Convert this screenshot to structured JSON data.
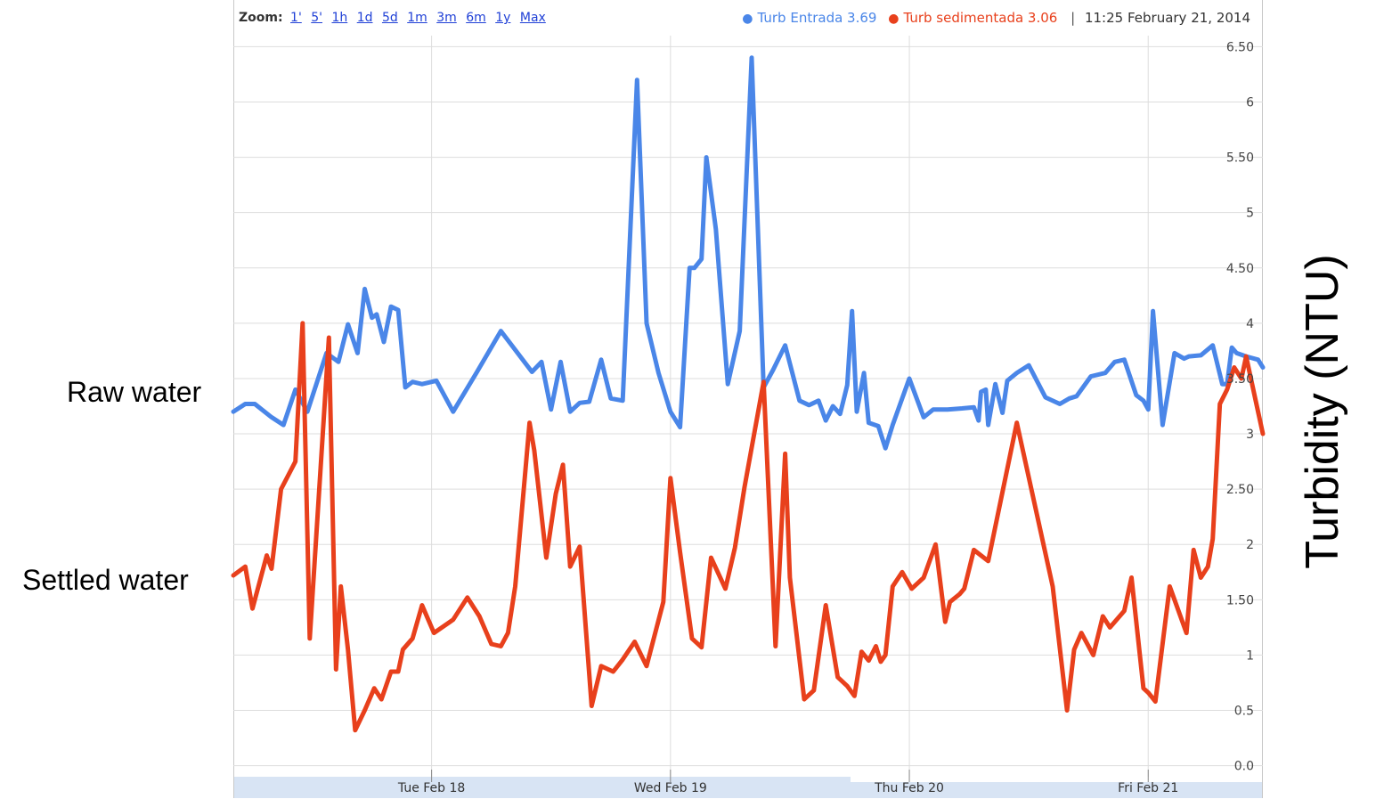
{
  "toolbar": {
    "zoom_label": "Zoom:",
    "zoom_options": [
      "1'",
      "5'",
      "1h",
      "1d",
      "5d",
      "1m",
      "3m",
      "6m",
      "1y",
      "Max"
    ]
  },
  "legend": {
    "series": [
      {
        "label": "Turb Entrada 3.69",
        "color": "#4a86e8"
      },
      {
        "label": "Turb sedimentada 3.06",
        "color": "#e8401c"
      }
    ],
    "separator": "|",
    "timestamp": "11:25 February 21, 2014"
  },
  "annotations": {
    "raw": "Raw water",
    "settled": "Settled water",
    "ylabel": "Turbidity (NTU)"
  },
  "colors": {
    "raw": "#4a86e8",
    "settled": "#e8401c",
    "grid": "#dddddd",
    "axis_band": "#d8e4f4"
  },
  "chart_data": {
    "type": "line",
    "title": "",
    "xlabel": "",
    "ylabel": "Turbidity (NTU)",
    "x_unit": "days since Mon Feb 17 00:00",
    "xlim": [
      0.17,
      4.48
    ],
    "ylim": [
      -0.1,
      6.6
    ],
    "grid": true,
    "x_ticks": [
      {
        "at": 1,
        "label": "Tue Feb 18"
      },
      {
        "at": 2,
        "label": "Wed Feb 19"
      },
      {
        "at": 3,
        "label": "Thu Feb 20"
      },
      {
        "at": 4,
        "label": "Fri Feb 21"
      }
    ],
    "y_ticks": [
      {
        "at": 0,
        "label": "0.0"
      },
      {
        "at": 0.5,
        "label": "0.5"
      },
      {
        "at": 1,
        "label": "1"
      },
      {
        "at": 1.5,
        "label": "1.50"
      },
      {
        "at": 2,
        "label": "2"
      },
      {
        "at": 2.5,
        "label": "2.50"
      },
      {
        "at": 3,
        "label": "3"
      },
      {
        "at": 3.5,
        "label": "3.50"
      },
      {
        "at": 4,
        "label": "4"
      },
      {
        "at": 4.5,
        "label": "4.50"
      },
      {
        "at": 5,
        "label": "5"
      },
      {
        "at": 5.5,
        "label": "5.50"
      },
      {
        "at": 6,
        "label": "6"
      },
      {
        "at": 6.5,
        "label": "6.50"
      }
    ],
    "series": [
      {
        "name": "Turb Entrada",
        "color": "#4a86e8",
        "x": [
          0.17,
          0.22,
          0.26,
          0.33,
          0.38,
          0.43,
          0.48,
          0.56,
          0.61,
          0.65,
          0.69,
          0.72,
          0.75,
          0.77,
          0.8,
          0.83,
          0.86,
          0.89,
          0.92,
          0.96,
          1.02,
          1.09,
          1.19,
          1.29,
          1.42,
          1.46,
          1.5,
          1.54,
          1.58,
          1.62,
          1.66,
          1.71,
          1.75,
          1.8,
          1.86,
          1.9,
          1.95,
          2.0,
          2.04,
          2.08,
          2.1,
          2.13,
          2.15,
          2.19,
          2.24,
          2.29,
          2.34,
          2.39,
          2.43,
          2.48,
          2.54,
          2.58,
          2.62,
          2.65,
          2.68,
          2.71,
          2.74,
          2.76,
          2.78,
          2.81,
          2.83,
          2.87,
          2.9,
          2.93,
          3.0,
          3.06,
          3.1,
          3.16,
          3.22,
          3.27,
          3.29,
          3.3,
          3.32,
          3.33,
          3.36,
          3.39,
          3.41,
          3.45,
          3.5,
          3.57,
          3.63,
          3.67,
          3.7,
          3.76,
          3.82,
          3.86,
          3.9,
          3.95,
          3.98,
          4.0,
          4.02,
          4.06,
          4.11,
          4.15,
          4.17,
          4.22,
          4.27,
          4.31,
          4.33,
          4.35,
          4.37,
          4.41,
          4.46,
          4.48
        ],
        "y": [
          3.2,
          3.27,
          3.27,
          3.15,
          3.08,
          3.4,
          3.2,
          3.73,
          3.65,
          3.99,
          3.73,
          4.31,
          4.05,
          4.08,
          3.83,
          4.15,
          4.12,
          3.42,
          3.47,
          3.45,
          3.48,
          3.2,
          3.56,
          3.93,
          3.56,
          3.65,
          3.22,
          3.65,
          3.2,
          3.28,
          3.29,
          3.67,
          3.32,
          3.3,
          6.2,
          4.0,
          3.55,
          3.2,
          3.06,
          4.5,
          4.5,
          4.58,
          5.5,
          4.85,
          3.45,
          3.93,
          6.4,
          3.42,
          3.58,
          3.8,
          3.3,
          3.26,
          3.3,
          3.12,
          3.25,
          3.18,
          3.44,
          4.11,
          3.2,
          3.55,
          3.1,
          3.07,
          2.87,
          3.08,
          3.5,
          3.15,
          3.22,
          3.22,
          3.23,
          3.24,
          3.12,
          3.38,
          3.4,
          3.08,
          3.45,
          3.19,
          3.48,
          3.55,
          3.62,
          3.33,
          3.27,
          3.32,
          3.34,
          3.52,
          3.55,
          3.65,
          3.67,
          3.35,
          3.3,
          3.22,
          4.11,
          3.08,
          3.73,
          3.68,
          3.7,
          3.71,
          3.8,
          3.45,
          3.45,
          3.78,
          3.73,
          3.7,
          3.67,
          3.6
        ]
      },
      {
        "name": "Turb sedimentada",
        "color": "#e8401c",
        "x": [
          0.17,
          0.22,
          0.25,
          0.31,
          0.33,
          0.37,
          0.43,
          0.46,
          0.49,
          0.57,
          0.6,
          0.62,
          0.65,
          0.68,
          0.72,
          0.76,
          0.79,
          0.83,
          0.86,
          0.88,
          0.92,
          0.96,
          1.01,
          1.09,
          1.15,
          1.2,
          1.25,
          1.29,
          1.32,
          1.35,
          1.39,
          1.41,
          1.43,
          1.48,
          1.52,
          1.55,
          1.58,
          1.62,
          1.67,
          1.71,
          1.76,
          1.8,
          1.85,
          1.9,
          1.97,
          2.0,
          2.04,
          2.09,
          2.13,
          2.17,
          2.23,
          2.27,
          2.31,
          2.39,
          2.44,
          2.48,
          2.5,
          2.56,
          2.6,
          2.65,
          2.7,
          2.74,
          2.77,
          2.8,
          2.83,
          2.86,
          2.88,
          2.9,
          2.93,
          2.97,
          3.01,
          3.06,
          3.11,
          3.15,
          3.17,
          3.21,
          3.23,
          3.27,
          3.33,
          3.45,
          3.6,
          3.66,
          3.69,
          3.72,
          3.77,
          3.81,
          3.84,
          3.9,
          3.93,
          3.98,
          4.0,
          4.03,
          4.09,
          4.16,
          4.19,
          4.22,
          4.25,
          4.27,
          4.3,
          4.33,
          4.36,
          4.39,
          4.41,
          4.46,
          4.48
        ],
        "y": [
          1.72,
          1.8,
          1.42,
          1.9,
          1.78,
          2.5,
          2.75,
          4.0,
          1.15,
          3.87,
          0.87,
          1.62,
          1.05,
          0.32,
          0.5,
          0.7,
          0.6,
          0.85,
          0.85,
          1.05,
          1.15,
          1.45,
          1.2,
          1.32,
          1.52,
          1.35,
          1.1,
          1.08,
          1.2,
          1.62,
          2.6,
          3.1,
          2.85,
          1.88,
          2.46,
          2.72,
          1.8,
          1.98,
          0.54,
          0.9,
          0.85,
          0.96,
          1.12,
          0.9,
          1.48,
          2.6,
          1.93,
          1.15,
          1.07,
          1.88,
          1.6,
          1.97,
          2.52,
          3.47,
          1.08,
          2.82,
          1.7,
          0.6,
          0.68,
          1.45,
          0.8,
          0.72,
          0.63,
          1.03,
          0.95,
          1.08,
          0.94,
          1.0,
          1.62,
          1.75,
          1.6,
          1.7,
          2.0,
          1.3,
          1.48,
          1.55,
          1.6,
          1.95,
          1.85,
          3.1,
          1.62,
          0.5,
          1.05,
          1.2,
          1.0,
          1.35,
          1.25,
          1.4,
          1.7,
          0.7,
          0.66,
          0.58,
          1.62,
          1.2,
          1.95,
          1.7,
          1.8,
          2.05,
          3.27,
          3.4,
          3.6,
          3.5,
          3.7,
          3.2,
          3.0
        ]
      }
    ]
  }
}
